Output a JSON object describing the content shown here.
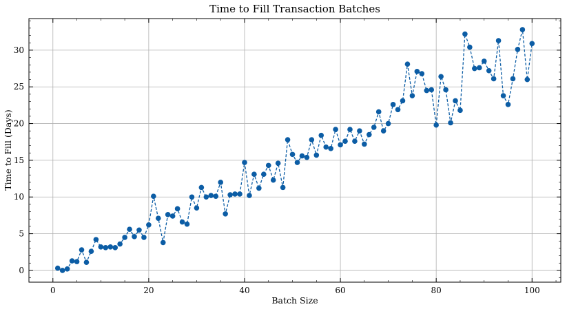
{
  "colors": {
    "series": "#0c5da5",
    "grid": "#b0b0b0"
  },
  "chart_data": {
    "type": "line",
    "title": "Time to Fill Transaction Batches",
    "xlabel": "Batch Size",
    "ylabel": "Time to Fill (Days)",
    "xlim": [
      -5,
      106
    ],
    "ylim": [
      -1.6,
      34.3
    ],
    "xticks": [
      0,
      20,
      40,
      60,
      80,
      100
    ],
    "yticks": [
      0,
      5,
      10,
      15,
      20,
      25,
      30
    ],
    "grid": true,
    "marker": "circle",
    "linestyle": "dashed",
    "x": [
      1,
      2,
      3,
      4,
      5,
      6,
      7,
      8,
      9,
      10,
      11,
      12,
      13,
      14,
      15,
      16,
      17,
      18,
      19,
      20,
      21,
      22,
      23,
      24,
      25,
      26,
      27,
      28,
      29,
      30,
      31,
      32,
      33,
      34,
      35,
      36,
      37,
      38,
      39,
      40,
      41,
      42,
      43,
      44,
      45,
      46,
      47,
      48,
      49,
      50,
      51,
      52,
      53,
      54,
      55,
      56,
      57,
      58,
      59,
      60,
      61,
      62,
      63,
      64,
      65,
      66,
      67,
      68,
      69,
      70,
      71,
      72,
      73,
      74,
      75,
      76,
      77,
      78,
      79,
      80,
      81,
      82,
      83,
      84,
      85,
      86,
      87,
      88,
      89,
      90,
      91,
      92,
      93,
      94,
      95,
      96,
      97,
      98,
      99,
      100
    ],
    "y": [
      0.3,
      0.0,
      0.2,
      1.3,
      1.2,
      2.8,
      1.1,
      2.6,
      4.2,
      3.2,
      3.1,
      3.2,
      3.1,
      3.6,
      4.5,
      5.6,
      4.6,
      5.5,
      4.5,
      6.2,
      10.1,
      7.1,
      3.8,
      7.6,
      7.4,
      8.4,
      6.6,
      6.3,
      10.0,
      8.5,
      11.3,
      10.0,
      10.2,
      10.1,
      12.0,
      7.7,
      10.3,
      10.4,
      10.4,
      14.7,
      10.2,
      13.1,
      11.2,
      13.1,
      14.3,
      12.3,
      14.6,
      11.3,
      17.8,
      15.8,
      14.7,
      15.6,
      15.4,
      17.8,
      15.7,
      18.4,
      16.8,
      16.6,
      19.2,
      17.1,
      17.6,
      19.2,
      17.6,
      19.0,
      17.2,
      18.5,
      19.5,
      21.6,
      19.0,
      20.0,
      22.6,
      21.9,
      23.1,
      28.1,
      23.8,
      27.1,
      26.8,
      24.5,
      24.6,
      19.8,
      26.4,
      24.6,
      20.1,
      23.1,
      21.8,
      32.2,
      30.4,
      27.5,
      27.6,
      28.5,
      27.2,
      26.1,
      31.3,
      23.8,
      22.6,
      26.1,
      30.1,
      32.8,
      26.0,
      30.9
    ]
  }
}
